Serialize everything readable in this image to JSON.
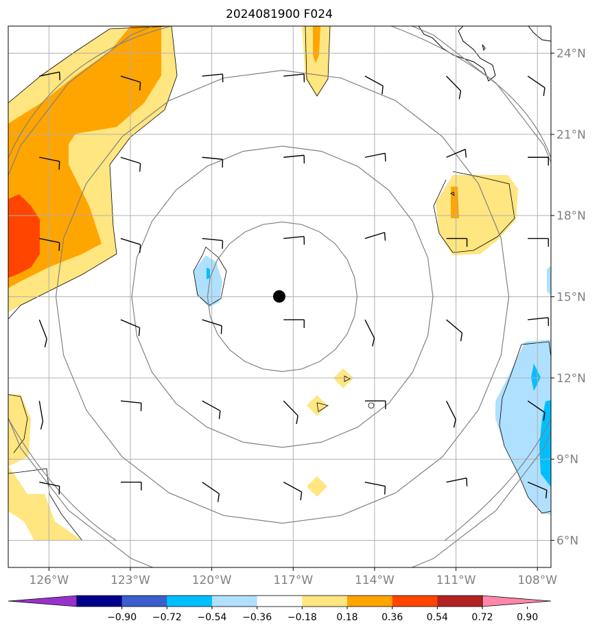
{
  "title": "2024081900 F024",
  "map": {
    "lon_range": [
      -127.5,
      -107.5
    ],
    "lat_range": [
      5.0,
      25.0
    ],
    "lon_ticks": [
      {
        "value": -126,
        "label": "126°W"
      },
      {
        "value": -123,
        "label": "123°W"
      },
      {
        "value": -120,
        "label": "120°W"
      },
      {
        "value": -117,
        "label": "117°W"
      },
      {
        "value": -114,
        "label": "114°W"
      },
      {
        "value": -111,
        "label": "111°W"
      },
      {
        "value": -108,
        "label": "108°W"
      }
    ],
    "lat_ticks": [
      {
        "value": 24,
        "label": "24°N"
      },
      {
        "value": 21,
        "label": "21°N"
      },
      {
        "value": 18,
        "label": "18°N"
      },
      {
        "value": 15,
        "label": "15°N"
      },
      {
        "value": 12,
        "label": "12°N"
      },
      {
        "value": 9,
        "label": "9°N"
      },
      {
        "value": 6,
        "label": "6°N"
      }
    ],
    "center_marker": {
      "lon": -117.4,
      "lat": 15.0
    },
    "range_rings_count": 4,
    "colors": {
      "gridline": "#b0b0b0",
      "ring": "#808080",
      "coast": "#000000",
      "barb": "#000000"
    }
  },
  "colorbar": {
    "levels": [
      "−0.90",
      "−0.72",
      "−0.54",
      "−0.36",
      "−0.18",
      "0.18",
      "0.36",
      "0.54",
      "0.72",
      "0.90"
    ],
    "colors": [
      "#9932cc",
      "#00008b",
      "#3a5fcd",
      "#00bfff",
      "#b0e0ff",
      "#ffffff",
      "#ffe680",
      "#ffa500",
      "#ff4500",
      "#b22222",
      "#ff88aa"
    ]
  }
}
